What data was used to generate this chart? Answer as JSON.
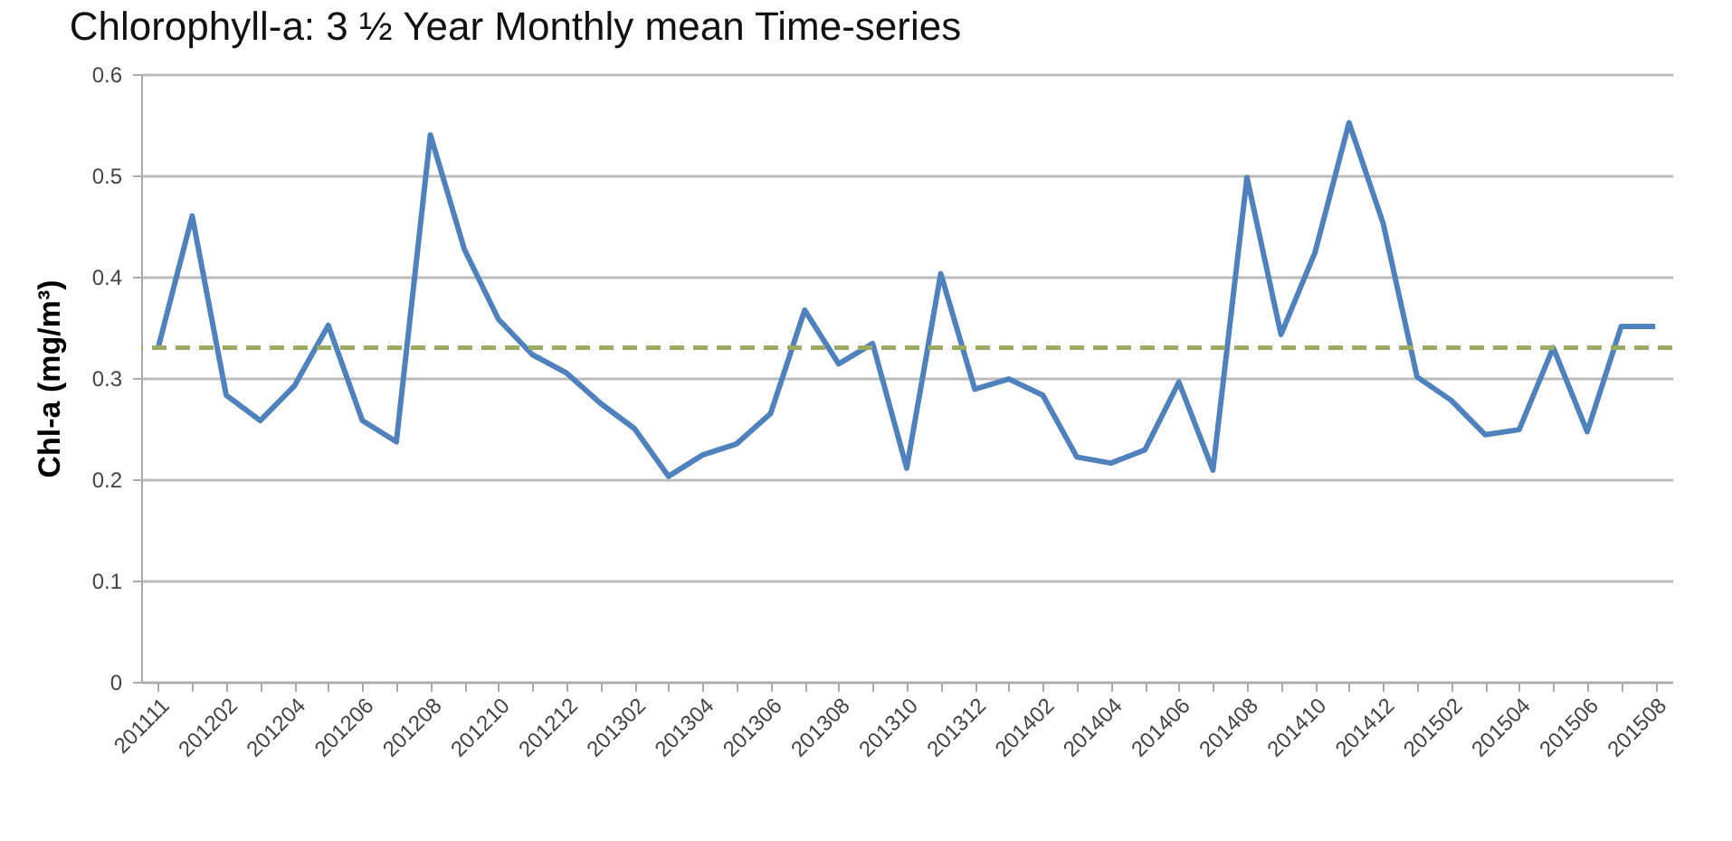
{
  "chart_data": {
    "type": "line",
    "title": "Chlorophyll-a: 3 ½ Year Monthly mean Time-series",
    "ylabel": "Chl-a (mg/m³)",
    "categories": [
      "201111",
      null,
      "201202",
      null,
      "201204",
      null,
      "201206",
      null,
      "201208",
      null,
      "201210",
      null,
      "201212",
      null,
      "201302",
      null,
      "201304",
      null,
      "201306",
      null,
      "201308",
      null,
      "201310",
      null,
      "201312",
      null,
      "201402",
      null,
      "201404",
      null,
      "201406",
      null,
      "201408",
      null,
      "201410",
      null,
      "201412",
      null,
      "201502",
      null,
      "201504",
      null,
      "201506",
      null,
      "201508"
    ],
    "series": [
      {
        "color": "#4f81bd",
        "values": [
          0.33,
          0.46,
          0.283,
          0.258,
          0.292,
          0.352,
          0.258,
          0.237,
          0.54,
          0.427,
          0.358,
          0.323,
          0.305,
          0.275,
          0.25,
          0.203,
          0.224,
          0.235,
          0.265,
          0.367,
          0.314,
          0.334,
          0.211,
          0.403,
          0.289,
          0.299,
          0.283,
          0.222,
          0.216,
          0.229,
          0.296,
          0.209,
          0.498,
          0.343,
          0.424,
          0.552,
          0.453,
          0.301,
          0.278,
          0.244,
          0.249,
          0.33,
          0.247,
          0.351,
          0.351
        ]
      }
    ],
    "ylim": [
      0,
      0.6
    ],
    "yticks": [
      0,
      0.1,
      0.2,
      0.3,
      0.4,
      0.5,
      0.6
    ],
    "grid": "y",
    "ref_lines": [
      {
        "axis": "y",
        "value": 0.33,
        "color": "#9bab62",
        "line_style": "dashed"
      }
    ]
  }
}
